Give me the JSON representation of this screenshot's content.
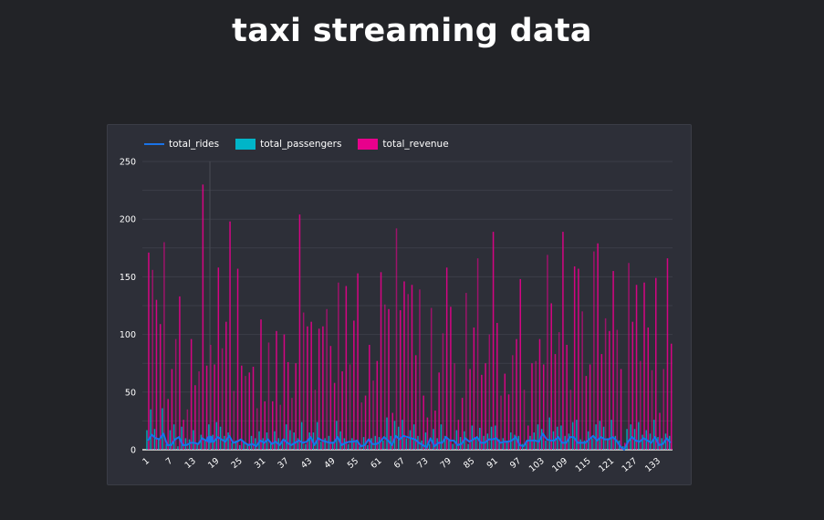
{
  "page_title": "taxi streaming data",
  "colors": {
    "background": "#222327",
    "card": "#2d2f38",
    "rides": "#1a73e8",
    "passengers": "#00b5c8",
    "revenue": "#e8008c",
    "grid": "#3c3e48"
  },
  "chart_data": {
    "type": "bar",
    "title": "",
    "xlabel": "",
    "ylabel": "",
    "ylim": [
      0,
      250
    ],
    "yticks": [
      "0",
      "50",
      "100",
      "150",
      "200",
      "250"
    ],
    "grid": true,
    "legend_position": "top-left",
    "x_tick_step": 6,
    "hovered_category": 17,
    "categories_count": 136,
    "series": [
      {
        "name": "total_rides",
        "render": "line",
        "values": [
          8,
          13,
          10,
          9,
          14,
          4,
          4,
          9,
          11,
          4,
          4,
          6,
          6,
          5,
          10,
          8,
          9,
          7,
          11,
          9,
          7,
          12,
          6,
          7,
          9,
          6,
          4,
          5,
          3,
          8,
          6,
          9,
          5,
          7,
          4,
          9,
          6,
          4,
          6,
          8,
          6,
          7,
          11,
          4,
          10,
          8,
          7,
          6,
          6,
          11,
          4,
          6,
          7,
          7,
          8,
          3,
          4,
          9,
          5,
          5,
          7,
          11,
          8,
          4,
          12,
          9,
          12,
          11,
          10,
          9,
          6,
          4,
          2,
          10,
          3,
          6,
          6,
          11,
          8,
          8,
          4,
          5,
          10,
          7,
          9,
          11,
          6,
          6,
          9,
          9,
          10,
          6,
          7,
          7,
          8,
          11,
          4,
          3,
          8,
          8,
          8,
          7,
          14,
          9,
          8,
          8,
          11,
          6,
          6,
          11,
          11,
          6,
          6,
          6,
          9,
          12,
          8,
          11,
          9,
          9,
          11,
          8,
          3,
          0,
          7,
          11,
          8,
          7,
          10,
          8,
          6,
          11,
          4,
          5,
          10,
          6
        ]
      },
      {
        "name": "total_passengers",
        "render": "bar",
        "values": [
          17,
          35,
          18,
          10,
          36,
          5,
          17,
          22,
          3,
          20,
          10,
          9,
          17,
          5,
          13,
          9,
          22,
          13,
          24,
          20,
          12,
          15,
          6,
          8,
          4,
          7,
          4,
          12,
          10,
          16,
          10,
          15,
          6,
          16,
          10,
          8,
          22,
          17,
          15,
          10,
          24,
          5,
          15,
          15,
          24,
          7,
          10,
          12,
          7,
          25,
          16,
          10,
          5,
          10,
          8,
          3,
          11,
          4,
          10,
          12,
          11,
          8,
          28,
          12,
          25,
          20,
          26,
          10,
          17,
          22,
          12,
          8,
          15,
          5,
          18,
          10,
          22,
          12,
          8,
          5,
          17,
          11,
          16,
          5,
          21,
          10,
          19,
          12,
          14,
          20,
          21,
          9,
          10,
          8,
          15,
          13,
          12,
          5,
          8,
          12,
          15,
          22,
          18,
          8,
          28,
          16,
          20,
          21,
          12,
          14,
          24,
          26,
          9,
          8,
          16,
          10,
          22,
          25,
          20,
          10,
          26,
          12,
          8,
          3,
          18,
          22,
          18,
          24,
          13,
          17,
          14,
          26,
          11,
          10,
          14,
          12
        ]
      },
      {
        "name": "total_revenue",
        "render": "bar",
        "values": [
          171,
          156,
          130,
          109,
          180,
          44,
          70,
          96,
          133,
          26,
          35,
          96,
          56,
          68,
          230,
          73,
          91,
          74,
          158,
          88,
          111,
          198,
          51,
          157,
          73,
          64,
          67,
          72,
          36,
          113,
          42,
          93,
          42,
          103,
          39,
          100,
          76,
          45,
          75,
          204,
          119,
          107,
          111,
          52,
          105,
          107,
          122,
          90,
          58,
          145,
          68,
          142,
          74,
          112,
          153,
          41,
          47,
          91,
          60,
          77,
          154,
          126,
          122,
          32,
          192,
          121,
          146,
          135,
          143,
          82,
          139,
          47,
          28,
          123,
          34,
          67,
          101,
          158,
          124,
          75,
          26,
          45,
          136,
          70,
          106,
          166,
          65,
          75,
          100,
          189,
          110,
          47,
          66,
          48,
          82,
          96,
          148,
          52,
          21,
          75,
          77,
          96,
          74,
          169,
          127,
          83,
          102,
          189,
          91,
          52,
          159,
          157,
          120,
          64,
          74,
          172,
          179,
          83,
          114,
          103,
          155,
          104,
          70,
          6,
          162,
          111,
          143,
          77,
          145,
          106,
          69,
          149,
          32,
          70,
          166,
          92
        ]
      }
    ]
  }
}
